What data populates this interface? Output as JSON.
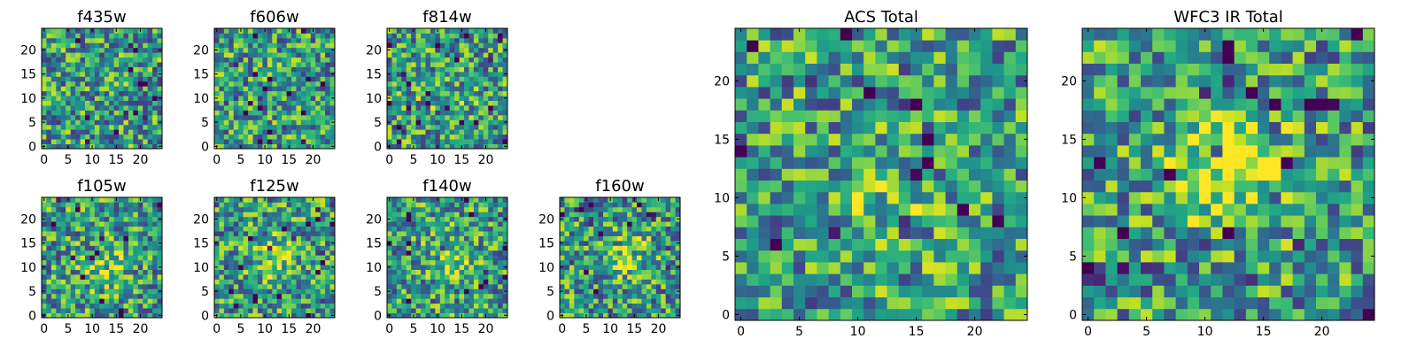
{
  "chart_data": [
    {
      "type": "heatmap",
      "title": "f435w",
      "size": 25,
      "seed": 435,
      "blobs": [],
      "xticks": [
        0,
        5,
        10,
        15,
        20
      ],
      "yticks": [
        0,
        5,
        10,
        15,
        20
      ],
      "xlim": [
        -0.5,
        24.5
      ],
      "ylim": [
        -0.5,
        24.5
      ],
      "colormap": "viridis"
    },
    {
      "type": "heatmap",
      "title": "f606w",
      "size": 25,
      "seed": 606,
      "blobs": [],
      "xticks": [
        0,
        5,
        10,
        15,
        20
      ],
      "yticks": [
        0,
        5,
        10,
        15,
        20
      ],
      "xlim": [
        -0.5,
        24.5
      ],
      "ylim": [
        -0.5,
        24.5
      ],
      "colormap": "viridis"
    },
    {
      "type": "heatmap",
      "title": "f814w",
      "size": 25,
      "seed": 814,
      "blobs": [
        [
          12,
          10,
          0.12
        ]
      ],
      "xticks": [
        0,
        5,
        10,
        15,
        20
      ],
      "yticks": [
        0,
        5,
        10,
        15,
        20
      ],
      "xlim": [
        -0.5,
        24.5
      ],
      "ylim": [
        -0.5,
        24.5
      ],
      "colormap": "viridis"
    },
    {
      "type": "heatmap",
      "title": "f105w",
      "size": 25,
      "seed": 105,
      "blobs": [
        [
          13,
          10,
          0.25
        ]
      ],
      "xticks": [
        0,
        5,
        10,
        15,
        20
      ],
      "yticks": [
        0,
        5,
        10,
        15,
        20
      ],
      "xlim": [
        -0.5,
        24.5
      ],
      "ylim": [
        -0.5,
        24.5
      ],
      "colormap": "viridis"
    },
    {
      "type": "heatmap",
      "title": "f125w",
      "size": 25,
      "seed": 125,
      "blobs": [
        [
          12,
          12,
          0.25
        ]
      ],
      "xticks": [
        0,
        5,
        10,
        15,
        20
      ],
      "yticks": [
        0,
        5,
        10,
        15,
        20
      ],
      "xlim": [
        -0.5,
        24.5
      ],
      "ylim": [
        -0.5,
        24.5
      ],
      "colormap": "viridis"
    },
    {
      "type": "heatmap",
      "title": "f140w",
      "size": 25,
      "seed": 140,
      "blobs": [
        [
          13,
          12,
          0.25
        ]
      ],
      "xticks": [
        0,
        5,
        10,
        15,
        20
      ],
      "yticks": [
        0,
        5,
        10,
        15,
        20
      ],
      "xlim": [
        -0.5,
        24.5
      ],
      "ylim": [
        -0.5,
        24.5
      ],
      "colormap": "viridis"
    },
    {
      "type": "heatmap",
      "title": "f160w",
      "size": 25,
      "seed": 160,
      "blobs": [
        [
          14,
          12,
          0.2
        ]
      ],
      "xticks": [
        0,
        5,
        10,
        15,
        20
      ],
      "yticks": [
        0,
        5,
        10,
        15,
        20
      ],
      "xlim": [
        -0.5,
        24.5
      ],
      "ylim": [
        -0.5,
        24.5
      ],
      "colormap": "viridis"
    },
    {
      "type": "heatmap",
      "title": "ACS Total",
      "size": 25,
      "seed": 1001,
      "blobs": [
        [
          12,
          9,
          0.15
        ]
      ],
      "xticks": [
        0,
        5,
        10,
        15,
        20
      ],
      "yticks": [
        0,
        5,
        10,
        15,
        20
      ],
      "xlim": [
        -0.5,
        24.5
      ],
      "ylim": [
        -0.5,
        24.5
      ],
      "colormap": "viridis"
    },
    {
      "type": "heatmap",
      "title": "WFC3 IR Total",
      "size": 25,
      "seed": 2002,
      "blobs": [
        [
          13,
          12,
          0.35
        ],
        [
          11,
          14,
          0.15
        ]
      ],
      "xticks": [
        0,
        5,
        10,
        15,
        20
      ],
      "yticks": [
        0,
        5,
        10,
        15,
        20
      ],
      "xlim": [
        -0.5,
        24.5
      ],
      "ylim": [
        -0.5,
        24.5
      ],
      "colormap": "viridis"
    }
  ]
}
